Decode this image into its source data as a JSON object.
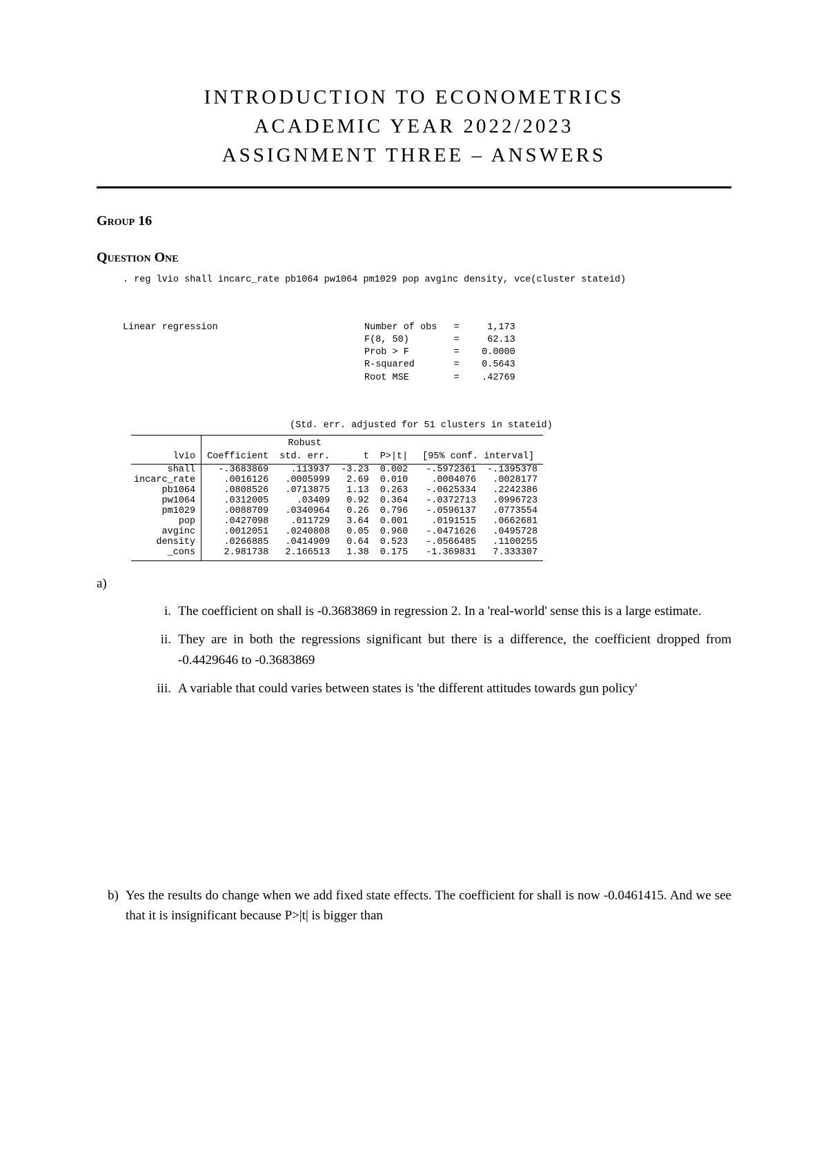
{
  "title": {
    "line1": "INTRODUCTION TO ECONOMETRICS",
    "line2": "ACADEMIC YEAR 2022/2023",
    "line3": "ASSIGNMENT THREE – ANSWERS"
  },
  "group_heading": "Group 16",
  "question_heading": "Question One",
  "stata": {
    "command": ". reg lvio shall incarc_rate pb1064 pw1064 pm1029 pop avginc density, vce(cluster stateid)",
    "model_label": "Linear regression",
    "stats": [
      {
        "label": "Number of obs",
        "eq": "=",
        "value": "1,173"
      },
      {
        "label": "F(8, 50)",
        "eq": "=",
        "value": "62.13"
      },
      {
        "label": "Prob > F",
        "eq": "=",
        "value": "0.0000"
      },
      {
        "label": "R-squared",
        "eq": "=",
        "value": "0.5643"
      },
      {
        "label": "Root MSE",
        "eq": "=",
        "value": ".42769"
      }
    ],
    "cluster_note": "(Std. err. adjusted for 51 clusters in stateid)",
    "depvar": "lvio",
    "col_headers": {
      "coef": "Coefficient",
      "se_top": "Robust",
      "se": "std. err.",
      "t": "t",
      "p": "P>|t|",
      "ci": "[95% conf. interval]"
    },
    "rows": [
      {
        "var": "shall",
        "coef": "-.3683869",
        "se": ".113937",
        "t": "-3.23",
        "p": "0.002",
        "cil": "-.5972361",
        "cih": "-.1395378"
      },
      {
        "var": "incarc_rate",
        "coef": ".0016126",
        "se": ".0005999",
        "t": "2.69",
        "p": "0.010",
        "cil": ".0004076",
        "cih": ".0028177"
      },
      {
        "var": "pb1064",
        "coef": ".0808526",
        "se": ".0713875",
        "t": "1.13",
        "p": "0.263",
        "cil": "-.0625334",
        "cih": ".2242386"
      },
      {
        "var": "pw1064",
        "coef": ".0312005",
        "se": ".03409",
        "t": "0.92",
        "p": "0.364",
        "cil": "-.0372713",
        "cih": ".0996723"
      },
      {
        "var": "pm1029",
        "coef": ".0088709",
        "se": ".0340964",
        "t": "0.26",
        "p": "0.796",
        "cil": "-.0596137",
        "cih": ".0773554"
      },
      {
        "var": "pop",
        "coef": ".0427098",
        "se": ".011729",
        "t": "3.64",
        "p": "0.001",
        "cil": ".0191515",
        "cih": ".0662681"
      },
      {
        "var": "avginc",
        "coef": ".0012051",
        "se": ".0240808",
        "t": "0.05",
        "p": "0.960",
        "cil": "-.0471626",
        "cih": ".0495728"
      },
      {
        "var": "density",
        "coef": ".0266885",
        "se": ".0414909",
        "t": "0.64",
        "p": "0.523",
        "cil": "-.0566485",
        "cih": ".1100255"
      },
      {
        "var": "_cons",
        "coef": "2.981738",
        "se": "2.166513",
        "t": "1.38",
        "p": "0.175",
        "cil": "-1.369831",
        "cih": "7.333307"
      }
    ]
  },
  "answers": {
    "a_label": "a)",
    "items": [
      {
        "marker": "i.",
        "text": "The coefficient on shall is -0.3683869 in regression 2. In a 'real-world' sense this is a large estimate."
      },
      {
        "marker": "ii.",
        "text": "They are in both the regressions significant but there is a difference, the coefficient dropped from -0.4429646 to -0.3683869"
      },
      {
        "marker": "iii.",
        "text": "A variable that could varies between states is 'the different attitudes towards gun policy'"
      }
    ],
    "b_label": "b)",
    "b_text": "Yes the results do change when we add fixed state effects. The coefficient for shall is now -0.0461415. And we see that it is insignificant because P>|t| is bigger than"
  }
}
